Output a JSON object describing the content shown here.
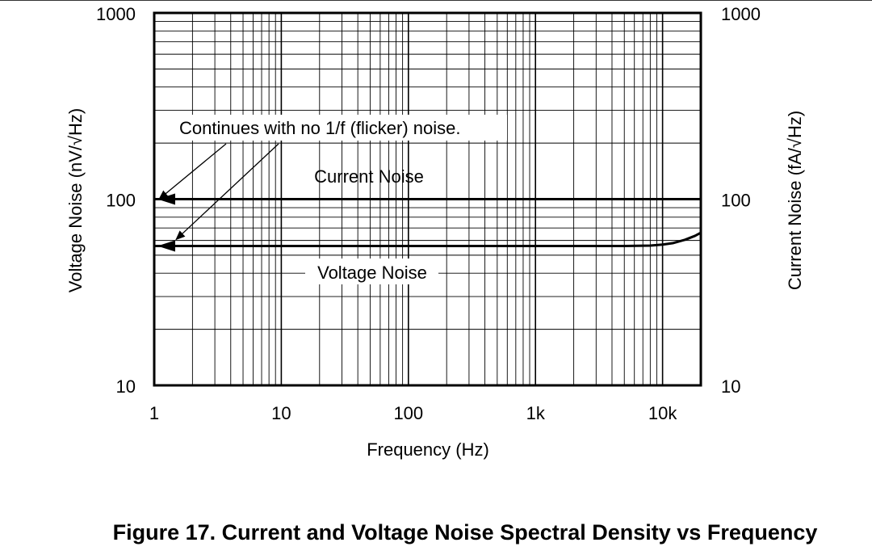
{
  "figure": {
    "caption": "Figure 17. Current and Voltage Noise Spectral Density vs Frequency"
  },
  "chart_data": {
    "type": "line",
    "xlabel": "Frequency (Hz)",
    "ylabel": "Voltage Noise (nV/√Hz)",
    "y2label": "Current Noise (fA/√Hz)",
    "x_scale": "log",
    "y_scale": "log",
    "y2_scale": "log",
    "xlim": [
      1,
      20000
    ],
    "ylim": [
      10,
      1000
    ],
    "y2lim": [
      10,
      1000
    ],
    "grid": true,
    "x_ticks": [
      {
        "value": 1,
        "label": "1"
      },
      {
        "value": 10,
        "label": "10"
      },
      {
        "value": 100,
        "label": "100"
      },
      {
        "value": 1000,
        "label": "1k"
      },
      {
        "value": 10000,
        "label": "10k"
      }
    ],
    "y_ticks": [
      {
        "value": 10,
        "label": "10"
      },
      {
        "value": 100,
        "label": "100"
      },
      {
        "value": 1000,
        "label": "1000"
      }
    ],
    "y2_ticks": [
      {
        "value": 10,
        "label": "10"
      },
      {
        "value": 100,
        "label": "100"
      },
      {
        "value": 1000,
        "label": "1000"
      }
    ],
    "series": [
      {
        "name": "Current Noise",
        "axis": "right",
        "x": [
          1,
          10,
          100,
          1000,
          10000,
          20000
        ],
        "y": [
          100,
          100,
          100,
          100,
          100,
          100
        ]
      },
      {
        "name": "Voltage Noise",
        "axis": "left",
        "x": [
          1,
          10,
          100,
          1000,
          5000,
          8000,
          10000,
          12000,
          15000,
          18000,
          20000
        ],
        "y": [
          56,
          56,
          56,
          56,
          56,
          56.3,
          57,
          58,
          60.5,
          63.5,
          66
        ]
      }
    ],
    "annotations": [
      {
        "text": "Continues with no 1/f (flicker) noise.",
        "arrows_to": [
          "Current Noise",
          "Voltage Noise"
        ]
      }
    ]
  }
}
